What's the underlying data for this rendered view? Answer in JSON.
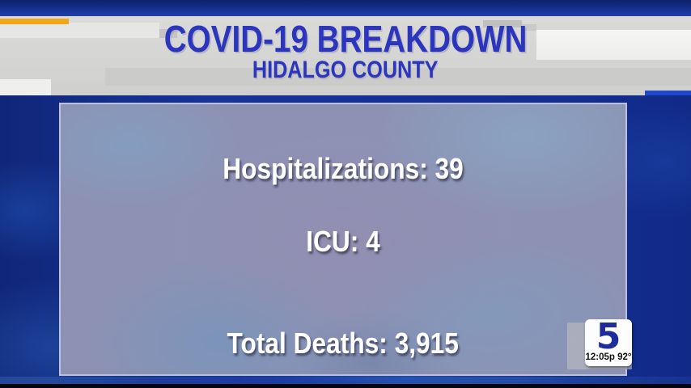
{
  "banner": {
    "title": "COVID-19 BREAKDOWN",
    "subtitle": "HIDALGO COUNTY",
    "title_color": "#2b35bd",
    "accent_color": "#f2a71b"
  },
  "stats_panel": {
    "rows": [
      {
        "label": "Hospitalizations",
        "value": "39",
        "text": "Hospitalizations: 39"
      },
      {
        "label": "ICU",
        "value": "4",
        "text": "ICU: 4"
      },
      {
        "label": "Total Deaths",
        "value": "3,915",
        "text": "Total Deaths: 3,915"
      }
    ]
  },
  "station_bug": {
    "channel": "5",
    "time": "12:05p",
    "temperature": "92°",
    "logo_color": "#1e2d9c"
  }
}
